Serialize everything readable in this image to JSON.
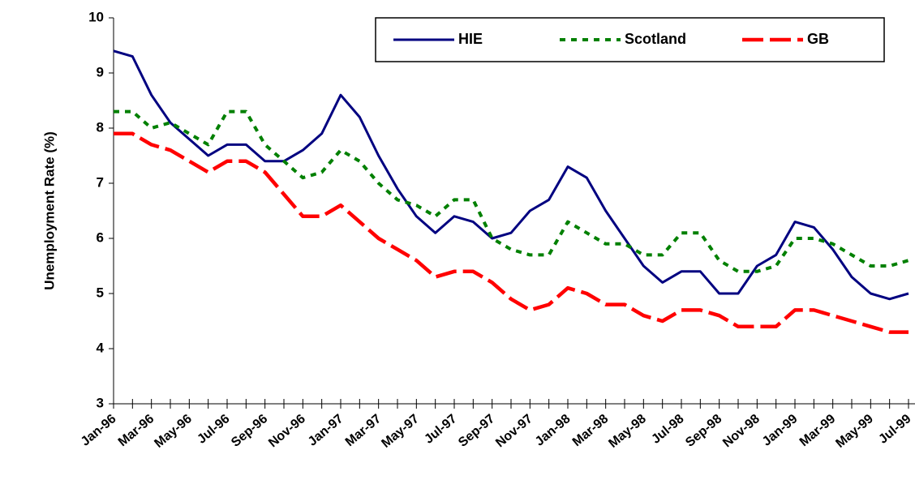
{
  "chart_data": {
    "type": "line",
    "y_label": "Unemployment Rate (%)",
    "categories": [
      "Jan-96",
      null,
      "Mar-96",
      null,
      "May-96",
      null,
      "Jul-96",
      null,
      "Sep-96",
      null,
      "Nov-96",
      null,
      "Jan-97",
      null,
      "Mar-97",
      null,
      "May-97",
      null,
      "Jul-97",
      null,
      "Sep-97",
      null,
      "Nov-97",
      null,
      "Jan-98",
      null,
      "Mar-98",
      null,
      "May-98",
      null,
      "Jul-98",
      null,
      "Sep-98",
      null,
      "Nov-98",
      null,
      "Jan-99",
      null,
      "Mar-99",
      null,
      "May-99",
      null,
      "Jul-99"
    ],
    "series": [
      {
        "name": "HIE",
        "color": "#000080",
        "style": "solid",
        "values": [
          9.4,
          9.3,
          8.6,
          8.1,
          7.8,
          7.5,
          7.7,
          7.7,
          7.4,
          7.4,
          7.6,
          7.9,
          8.6,
          8.2,
          7.5,
          6.9,
          6.4,
          6.1,
          6.4,
          6.3,
          6.0,
          6.1,
          6.5,
          6.7,
          7.3,
          7.1,
          6.5,
          6.0,
          5.5,
          5.2,
          5.4,
          5.4,
          5.0,
          5.0,
          5.5,
          5.7,
          6.3,
          6.2,
          5.8,
          5.3,
          5.0,
          4.9,
          5.0
        ]
      },
      {
        "name": "Scotland",
        "color": "#008000",
        "style": "dotted",
        "values": [
          8.3,
          8.3,
          8.0,
          8.1,
          7.9,
          7.7,
          8.3,
          8.3,
          7.7,
          7.4,
          7.1,
          7.2,
          7.6,
          7.4,
          7.0,
          6.7,
          6.6,
          6.4,
          6.7,
          6.7,
          6.0,
          5.8,
          5.7,
          5.7,
          6.3,
          6.1,
          5.9,
          5.9,
          5.7,
          5.7,
          6.1,
          6.1,
          5.6,
          5.4,
          5.4,
          5.5,
          6.0,
          6.0,
          5.9,
          5.7,
          5.5,
          5.5,
          5.6
        ]
      },
      {
        "name": "GB",
        "color": "#ff0000",
        "style": "dashed",
        "values": [
          7.9,
          7.9,
          7.7,
          7.6,
          7.4,
          7.2,
          7.4,
          7.4,
          7.2,
          6.8,
          6.4,
          6.4,
          6.6,
          6.3,
          6.0,
          5.8,
          5.6,
          5.3,
          5.4,
          5.4,
          5.2,
          4.9,
          4.7,
          4.8,
          5.1,
          5.0,
          4.8,
          4.8,
          4.6,
          4.5,
          4.7,
          4.7,
          4.6,
          4.4,
          4.4,
          4.4,
          4.7,
          4.7,
          4.6,
          4.5,
          4.4,
          4.3,
          4.3
        ]
      }
    ],
    "ylim": [
      3,
      10
    ],
    "yticks": [
      3,
      4,
      5,
      6,
      7,
      8,
      9,
      10
    ],
    "legend": "top"
  }
}
